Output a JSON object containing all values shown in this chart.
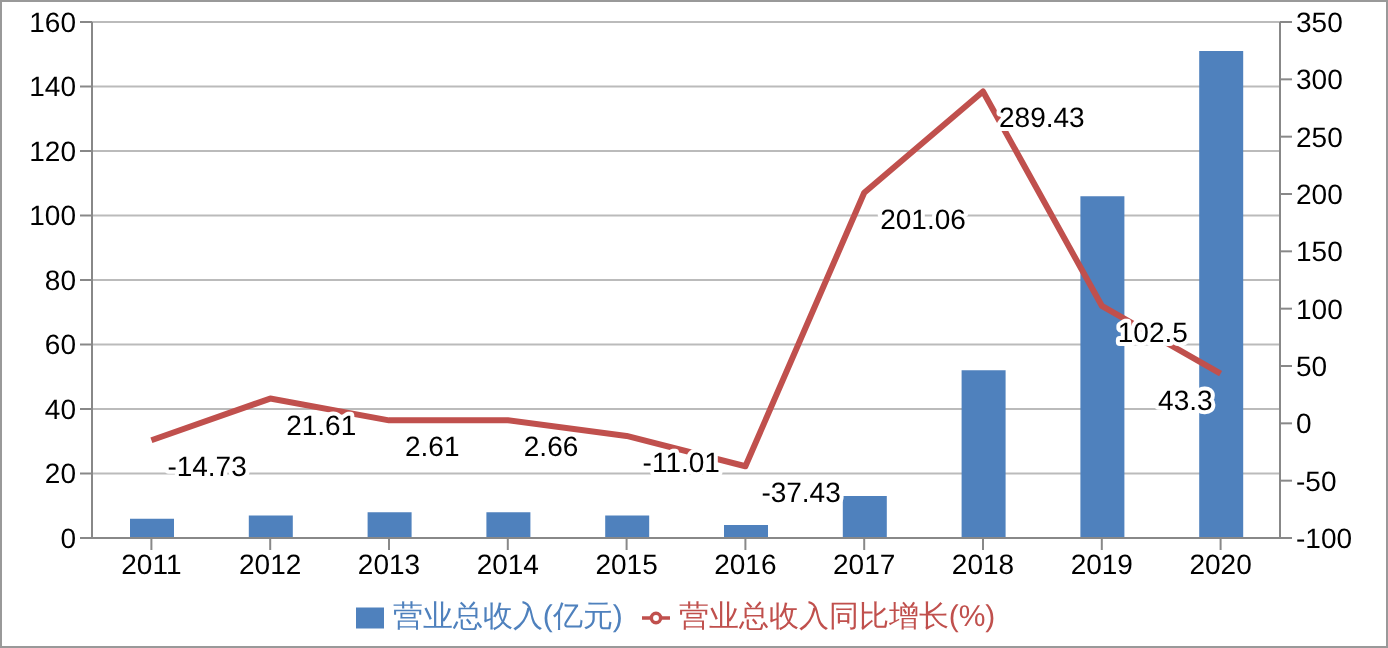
{
  "chart_data": {
    "type": "bar",
    "categories": [
      "2011",
      "2012",
      "2013",
      "2014",
      "2015",
      "2016",
      "2017",
      "2018",
      "2019",
      "2020"
    ],
    "series": [
      {
        "name": "营业总收入(亿元)",
        "color": "#4f81bd",
        "values": [
          6,
          7,
          8,
          8,
          7,
          4,
          13,
          52,
          106,
          151
        ]
      },
      {
        "name": "营业总收入同比增长(%)",
        "type": "line",
        "axis": "y2",
        "color": "#c0504d",
        "values": [
          -14.73,
          21.61,
          2.61,
          2.66,
          -11.01,
          -37.43,
          201.06,
          289.43,
          102.5,
          43.3
        ],
        "value_labels": [
          "-14.73",
          "21.61",
          "2.61",
          "2.66",
          "-11.01",
          "-37.43",
          "201.06",
          "289.43",
          "102.5",
          "43.3"
        ]
      }
    ],
    "ylim": [
      0,
      160
    ],
    "yticks": [
      0,
      20,
      40,
      60,
      80,
      100,
      120,
      140,
      160
    ],
    "y2lim": [
      -100,
      350
    ],
    "y2ticks": [
      -100,
      -50,
      0,
      50,
      100,
      150,
      200,
      250,
      300,
      350
    ],
    "grid": "y",
    "legend": "bottom",
    "marker": "none",
    "line_style": "solid"
  }
}
